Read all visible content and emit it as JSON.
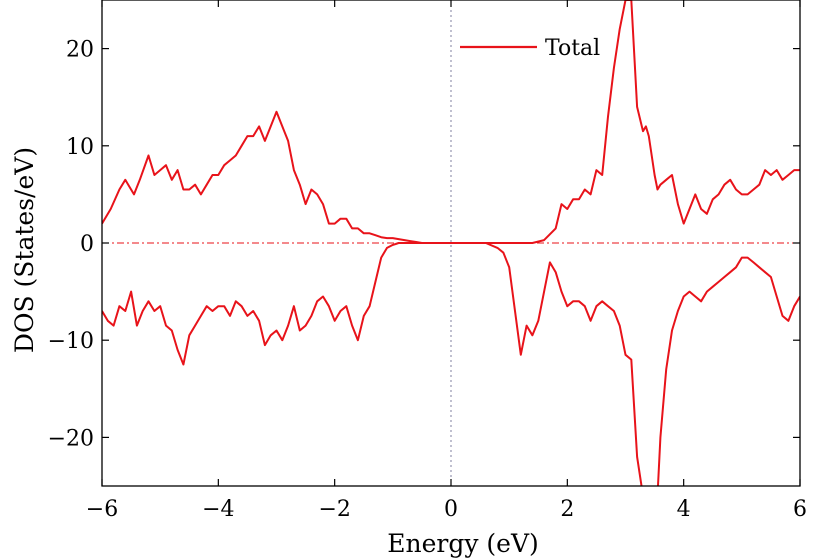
{
  "chart_data": {
    "type": "line",
    "xlabel": "Energy (eV)",
    "ylabel": "DOS (States/eV)",
    "xlim": [
      -6,
      6
    ],
    "ylim": [
      -25,
      25
    ],
    "x_ticks": [
      -6,
      -4,
      -2,
      0,
      2,
      4,
      6
    ],
    "x_tick_labels": [
      "−6",
      "−4",
      "−2",
      "0",
      "2",
      "4",
      "6"
    ],
    "y_ticks": [
      -20,
      -10,
      0,
      10,
      20
    ],
    "y_tick_labels": [
      "−20",
      "−10",
      "0",
      "10",
      "20"
    ],
    "grid": false,
    "legend": {
      "position": "top-right"
    },
    "colors": {
      "series": "#e8131a",
      "fermi_line": "#7f7f9f"
    },
    "series": [
      {
        "name": "Total",
        "color": "#e8131a",
        "segments": [
          {
            "spin": "up",
            "x": [
              -6.0,
              -5.85,
              -5.7,
              -5.6,
              -5.45,
              -5.35,
              -5.2,
              -5.1,
              -5.0,
              -4.9,
              -4.8,
              -4.7,
              -4.6,
              -4.5,
              -4.4,
              -4.3,
              -4.2,
              -4.1,
              -4.0,
              -3.9,
              -3.8,
              -3.7,
              -3.6,
              -3.5,
              -3.4,
              -3.3,
              -3.2,
              -3.1,
              -3.0,
              -2.9,
              -2.8,
              -2.7,
              -2.6,
              -2.5,
              -2.4,
              -2.3,
              -2.2,
              -2.1,
              -2.0,
              -1.9,
              -1.8,
              -1.7,
              -1.6,
              -1.5,
              -1.4,
              -1.3,
              -1.2,
              -1.1,
              -1.0,
              -0.9,
              -0.8,
              -0.7,
              -0.6,
              -0.5,
              -0.4,
              -0.3,
              -0.2,
              -0.1,
              0.0,
              0.2,
              0.4,
              0.6,
              0.8,
              1.0,
              1.2,
              1.4,
              1.6,
              1.8,
              1.9,
              2.0,
              2.1,
              2.2,
              2.3,
              2.4,
              2.5,
              2.6,
              2.7,
              2.8,
              2.9,
              3.0,
              3.1,
              3.2,
              3.3,
              3.35,
              3.4,
              3.45,
              3.5,
              3.55,
              3.6,
              3.7,
              3.8,
              3.9,
              4.0,
              4.1,
              4.2,
              4.3,
              4.4,
              4.5,
              4.6,
              4.7,
              4.8,
              4.9,
              5.0,
              5.1,
              5.2,
              5.3,
              5.4,
              5.5,
              5.6,
              5.7,
              5.8,
              5.9,
              6.0
            ],
            "y": [
              2.0,
              3.5,
              5.5,
              6.5,
              5.0,
              6.5,
              9.0,
              7.0,
              7.5,
              8.0,
              6.5,
              7.5,
              5.5,
              5.5,
              6.0,
              5.0,
              6.0,
              7.0,
              7.0,
              8.0,
              8.5,
              9.0,
              10.0,
              11.0,
              11.0,
              12.0,
              10.5,
              12.0,
              13.5,
              12.0,
              10.5,
              7.5,
              6.0,
              4.0,
              5.5,
              5.0,
              4.0,
              2.0,
              2.0,
              2.5,
              2.5,
              1.5,
              1.5,
              1.0,
              1.0,
              0.8,
              0.6,
              0.5,
              0.5,
              0.4,
              0.3,
              0.2,
              0.1,
              0.0,
              0.0,
              0.0,
              0.0,
              0.0,
              0.0,
              0.0,
              0.0,
              0.0,
              0.0,
              0.0,
              0.0,
              0.0,
              0.3,
              1.5,
              4.0,
              3.5,
              4.5,
              4.5,
              5.5,
              5.0,
              7.5,
              7.0,
              13.0,
              18.0,
              22.0,
              25.0,
              25.0,
              14.0,
              11.5,
              12.0,
              11.0,
              9.0,
              7.0,
              5.5,
              6.0,
              6.5,
              7.0,
              4.0,
              2.0,
              3.5,
              5.0,
              3.5,
              3.0,
              4.5,
              5.0,
              6.0,
              6.5,
              5.5,
              5.0,
              5.0,
              5.5,
              6.0,
              7.5,
              7.0,
              7.5,
              6.5,
              7.0,
              7.5,
              7.5
            ]
          },
          {
            "spin": "down",
            "x": [
              -6.0,
              -5.9,
              -5.8,
              -5.7,
              -5.6,
              -5.5,
              -5.4,
              -5.3,
              -5.2,
              -5.1,
              -5.0,
              -4.9,
              -4.8,
              -4.7,
              -4.6,
              -4.5,
              -4.4,
              -4.3,
              -4.2,
              -4.1,
              -4.0,
              -3.9,
              -3.8,
              -3.7,
              -3.6,
              -3.5,
              -3.4,
              -3.3,
              -3.2,
              -3.1,
              -3.0,
              -2.9,
              -2.8,
              -2.7,
              -2.6,
              -2.5,
              -2.4,
              -2.3,
              -2.2,
              -2.1,
              -2.0,
              -1.9,
              -1.8,
              -1.7,
              -1.6,
              -1.5,
              -1.4,
              -1.3,
              -1.2,
              -1.1,
              -1.0,
              -0.95,
              -0.9,
              -0.85,
              -0.8,
              -0.7,
              -0.5,
              -0.3,
              -0.1,
              0.0,
              0.3,
              0.6,
              0.8,
              0.9,
              1.0,
              1.1,
              1.2,
              1.3,
              1.4,
              1.5,
              1.6,
              1.7,
              1.8,
              1.9,
              2.0,
              2.1,
              2.2,
              2.3,
              2.4,
              2.5,
              2.6,
              2.7,
              2.8,
              2.9,
              3.0,
              3.1,
              3.2,
              3.3,
              3.35,
              3.4,
              3.45,
              3.5,
              3.55,
              3.6,
              3.7,
              3.8,
              3.9,
              4.0,
              4.1,
              4.2,
              4.3,
              4.4,
              4.5,
              4.6,
              4.7,
              4.8,
              4.9,
              5.0,
              5.1,
              5.2,
              5.3,
              5.4,
              5.5,
              5.6,
              5.7,
              5.8,
              5.9,
              6.0
            ],
            "y": [
              -7.0,
              -8.0,
              -8.5,
              -6.5,
              -7.0,
              -5.0,
              -8.5,
              -7.0,
              -6.0,
              -7.0,
              -6.5,
              -8.5,
              -9.0,
              -11.0,
              -12.5,
              -9.5,
              -8.5,
              -7.5,
              -6.5,
              -7.0,
              -6.5,
              -6.5,
              -7.5,
              -6.0,
              -6.5,
              -7.5,
              -7.0,
              -8.0,
              -10.5,
              -9.5,
              -9.0,
              -10.0,
              -8.5,
              -6.5,
              -9.0,
              -8.5,
              -7.5,
              -6.0,
              -5.5,
              -6.5,
              -8.0,
              -7.0,
              -6.5,
              -8.5,
              -10.0,
              -7.5,
              -6.5,
              -4.0,
              -1.5,
              -0.5,
              -0.2,
              -0.1,
              0.0,
              0.0,
              0.0,
              0.0,
              0.0,
              0.0,
              0.0,
              0.0,
              0.0,
              0.0,
              -0.5,
              -1.0,
              -2.5,
              -7.0,
              -11.5,
              -8.5,
              -9.5,
              -8.0,
              -5.0,
              -2.0,
              -3.0,
              -5.0,
              -6.5,
              -6.0,
              -6.0,
              -6.5,
              -8.0,
              -6.5,
              -6.0,
              -6.5,
              -7.0,
              -8.5,
              -11.5,
              -12.0,
              -22.0,
              -26.0,
              -26.0,
              -26.0,
              -26.0,
              -26.0,
              -26.0,
              -20.0,
              -13.0,
              -9.0,
              -7.0,
              -5.5,
              -5.0,
              -5.5,
              -6.0,
              -5.0,
              -4.5,
              -4.0,
              -3.5,
              -3.0,
              -2.5,
              -1.5,
              -1.5,
              -2.0,
              -2.5,
              -3.0,
              -3.5,
              -5.5,
              -7.5,
              -8.0,
              -6.5,
              -5.5
            ]
          }
        ]
      }
    ]
  }
}
